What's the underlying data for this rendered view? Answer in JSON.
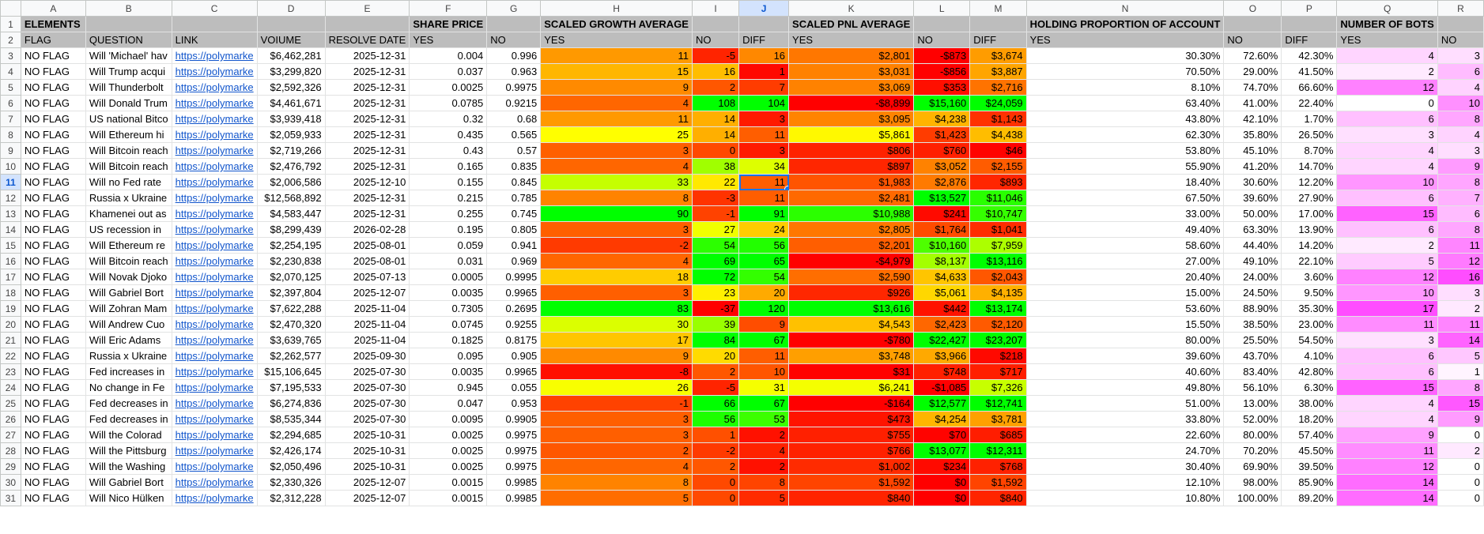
{
  "column_letters": [
    "A",
    "B",
    "C",
    "D",
    "E",
    "F",
    "G",
    "H",
    "I",
    "J",
    "K",
    "L",
    "M",
    "N",
    "O",
    "P",
    "Q",
    "R"
  ],
  "selected_column": "J",
  "selected_row": 11,
  "header_row1": [
    "ELEMENTS",
    "",
    "",
    "",
    "",
    "SHARE PRICE",
    "",
    "SCALED GROWTH AVERAGE",
    "",
    "",
    "SCALED PNL AVERAGE",
    "",
    "",
    "HOLDING PROPORTION OF ACCOUNT",
    "",
    "",
    "NUMBER OF BOTS",
    ""
  ],
  "header_row2": [
    "FLAG",
    "QUESTION",
    "LINK",
    "VOIUME",
    "RESOLVE DATE",
    "YES",
    "NO",
    "YES",
    "NO",
    "DIFF",
    "YES",
    "NO",
    "DIFF",
    "YES",
    "NO",
    "DIFF",
    "YES",
    "NO"
  ],
  "rows": [
    {
      "n": 3,
      "c": [
        "NO FLAG",
        "Will 'Michael' hav",
        "https://polymarke",
        "$6,462,281",
        "2025-12-31",
        "0.004",
        "0.996",
        "11",
        "-5",
        "16",
        "$2,801",
        "-$873",
        "$3,674",
        "30.30%",
        "72.60%",
        "42.30%",
        "4",
        "3"
      ]
    },
    {
      "n": 4,
      "c": [
        "NO FLAG",
        "Will Trump acqui",
        "https://polymarke",
        "$3,299,820",
        "2025-12-31",
        "0.037",
        "0.963",
        "15",
        "16",
        "1",
        "$3,031",
        "-$856",
        "$3,887",
        "70.50%",
        "29.00%",
        "41.50%",
        "2",
        "6"
      ]
    },
    {
      "n": 5,
      "c": [
        "NO FLAG",
        "Will Thunderbolt",
        "https://polymarke",
        "$2,592,326",
        "2025-12-31",
        "0.0025",
        "0.9975",
        "9",
        "2",
        "7",
        "$3,069",
        "$353",
        "$2,716",
        "8.10%",
        "74.70%",
        "66.60%",
        "12",
        "4"
      ]
    },
    {
      "n": 6,
      "c": [
        "NO FLAG",
        "Will Donald Trum",
        "https://polymarke",
        "$4,461,671",
        "2025-12-31",
        "0.0785",
        "0.9215",
        "4",
        "108",
        "104",
        "-$8,899",
        "$15,160",
        "$24,059",
        "63.40%",
        "41.00%",
        "22.40%",
        "0",
        "10"
      ]
    },
    {
      "n": 7,
      "c": [
        "NO FLAG",
        "US national Bitco",
        "https://polymarke",
        "$3,939,418",
        "2025-12-31",
        "0.32",
        "0.68",
        "11",
        "14",
        "3",
        "$3,095",
        "$4,238",
        "$1,143",
        "43.80%",
        "42.10%",
        "1.70%",
        "6",
        "8"
      ]
    },
    {
      "n": 8,
      "c": [
        "NO FLAG",
        "Will Ethereum hi",
        "https://polymarke",
        "$2,059,933",
        "2025-12-31",
        "0.435",
        "0.565",
        "25",
        "14",
        "11",
        "$5,861",
        "$1,423",
        "$4,438",
        "62.30%",
        "35.80%",
        "26.50%",
        "3",
        "4"
      ]
    },
    {
      "n": 9,
      "c": [
        "NO FLAG",
        "Will Bitcoin reach",
        "https://polymarke",
        "$2,719,266",
        "2025-12-31",
        "0.43",
        "0.57",
        "3",
        "0",
        "3",
        "$806",
        "$760",
        "$46",
        "53.80%",
        "45.10%",
        "8.70%",
        "4",
        "3"
      ]
    },
    {
      "n": 10,
      "c": [
        "NO FLAG",
        "Will Bitcoin reach",
        "https://polymarke",
        "$2,476,792",
        "2025-12-31",
        "0.165",
        "0.835",
        "4",
        "38",
        "34",
        "$897",
        "$3,052",
        "$2,155",
        "55.90%",
        "41.20%",
        "14.70%",
        "4",
        "9"
      ]
    },
    {
      "n": 11,
      "c": [
        "NO FLAG",
        "Will no Fed rate",
        "https://polymarke",
        "$2,006,586",
        "2025-12-10",
        "0.155",
        "0.845",
        "33",
        "22",
        "11",
        "$1,983",
        "$2,876",
        "$893",
        "18.40%",
        "30.60%",
        "12.20%",
        "10",
        "8"
      ]
    },
    {
      "n": 12,
      "c": [
        "NO FLAG",
        "Russia x Ukraine",
        "https://polymarke",
        "$12,568,892",
        "2025-12-31",
        "0.215",
        "0.785",
        "8",
        "-3",
        "11",
        "$2,481",
        "$13,527",
        "$11,046",
        "67.50%",
        "39.60%",
        "27.90%",
        "6",
        "7"
      ]
    },
    {
      "n": 13,
      "c": [
        "NO FLAG",
        "Khamenei out as",
        "https://polymarke",
        "$4,583,447",
        "2025-12-31",
        "0.255",
        "0.745",
        "90",
        "-1",
        "91",
        "$10,988",
        "$241",
        "$10,747",
        "33.00%",
        "50.00%",
        "17.00%",
        "15",
        "6"
      ]
    },
    {
      "n": 14,
      "c": [
        "NO FLAG",
        "US recession in",
        "https://polymarke",
        "$8,299,439",
        "2026-02-28",
        "0.195",
        "0.805",
        "3",
        "27",
        "24",
        "$2,805",
        "$1,764",
        "$1,041",
        "49.40%",
        "63.30%",
        "13.90%",
        "6",
        "8"
      ]
    },
    {
      "n": 15,
      "c": [
        "NO FLAG",
        "Will Ethereum re",
        "https://polymarke",
        "$2,254,195",
        "2025-08-01",
        "0.059",
        "0.941",
        "-2",
        "54",
        "56",
        "$2,201",
        "$10,160",
        "$7,959",
        "58.60%",
        "44.40%",
        "14.20%",
        "2",
        "11"
      ]
    },
    {
      "n": 16,
      "c": [
        "NO FLAG",
        "Will Bitcoin reach",
        "https://polymarke",
        "$2,230,838",
        "2025-08-01",
        "0.031",
        "0.969",
        "4",
        "69",
        "65",
        "-$4,979",
        "$8,137",
        "$13,116",
        "27.00%",
        "49.10%",
        "22.10%",
        "5",
        "12"
      ]
    },
    {
      "n": 17,
      "c": [
        "NO FLAG",
        "Will Novak Djoko",
        "https://polymarke",
        "$2,070,125",
        "2025-07-13",
        "0.0005",
        "0.9995",
        "18",
        "72",
        "54",
        "$2,590",
        "$4,633",
        "$2,043",
        "20.40%",
        "24.00%",
        "3.60%",
        "12",
        "16"
      ]
    },
    {
      "n": 18,
      "c": [
        "NO FLAG",
        "Will Gabriel Bort",
        "https://polymarke",
        "$2,397,804",
        "2025-12-07",
        "0.0035",
        "0.9965",
        "3",
        "23",
        "20",
        "$926",
        "$5,061",
        "$4,135",
        "15.00%",
        "24.50%",
        "9.50%",
        "10",
        "3"
      ]
    },
    {
      "n": 19,
      "c": [
        "NO FLAG",
        "Will Zohran Mam",
        "https://polymarke",
        "$7,622,288",
        "2025-11-04",
        "0.7305",
        "0.2695",
        "83",
        "-37",
        "120",
        "$13,616",
        "$442",
        "$13,174",
        "53.60%",
        "88.90%",
        "35.30%",
        "17",
        "2"
      ]
    },
    {
      "n": 20,
      "c": [
        "NO FLAG",
        "Will Andrew Cuo",
        "https://polymarke",
        "$2,470,320",
        "2025-11-04",
        "0.0745",
        "0.9255",
        "30",
        "39",
        "9",
        "$4,543",
        "$2,423",
        "$2,120",
        "15.50%",
        "38.50%",
        "23.00%",
        "11",
        "11"
      ]
    },
    {
      "n": 21,
      "c": [
        "NO FLAG",
        "Will Eric Adams",
        "https://polymarke",
        "$3,639,765",
        "2025-11-04",
        "0.1825",
        "0.8175",
        "17",
        "84",
        "67",
        "-$780",
        "$22,427",
        "$23,207",
        "80.00%",
        "25.50%",
        "54.50%",
        "3",
        "14"
      ]
    },
    {
      "n": 22,
      "c": [
        "NO FLAG",
        "Russia x Ukraine",
        "https://polymarke",
        "$2,262,577",
        "2025-09-30",
        "0.095",
        "0.905",
        "9",
        "20",
        "11",
        "$3,748",
        "$3,966",
        "$218",
        "39.60%",
        "43.70%",
        "4.10%",
        "6",
        "5"
      ]
    },
    {
      "n": 23,
      "c": [
        "NO FLAG",
        "Fed increases in",
        "https://polymarke",
        "$15,106,645",
        "2025-07-30",
        "0.0035",
        "0.9965",
        "-8",
        "2",
        "10",
        "$31",
        "$748",
        "$717",
        "40.60%",
        "83.40%",
        "42.80%",
        "6",
        "1"
      ]
    },
    {
      "n": 24,
      "c": [
        "NO FLAG",
        "No change in Fe",
        "https://polymarke",
        "$7,195,533",
        "2025-07-30",
        "0.945",
        "0.055",
        "26",
        "-5",
        "31",
        "$6,241",
        "-$1,085",
        "$7,326",
        "49.80%",
        "56.10%",
        "6.30%",
        "15",
        "8"
      ]
    },
    {
      "n": 25,
      "c": [
        "NO FLAG",
        "Fed decreases in",
        "https://polymarke",
        "$6,274,836",
        "2025-07-30",
        "0.047",
        "0.953",
        "-1",
        "66",
        "67",
        "-$164",
        "$12,577",
        "$12,741",
        "51.00%",
        "13.00%",
        "38.00%",
        "4",
        "15"
      ]
    },
    {
      "n": 26,
      "c": [
        "NO FLAG",
        "Fed decreases in",
        "https://polymarke",
        "$8,535,344",
        "2025-07-30",
        "0.0095",
        "0.9905",
        "3",
        "56",
        "53",
        "$473",
        "$4,254",
        "$3,781",
        "33.80%",
        "52.00%",
        "18.20%",
        "4",
        "9"
      ]
    },
    {
      "n": 27,
      "c": [
        "NO FLAG",
        "Will the Colorad",
        "https://polymarke",
        "$2,294,685",
        "2025-10-31",
        "0.0025",
        "0.9975",
        "3",
        "1",
        "2",
        "$755",
        "$70",
        "$685",
        "22.60%",
        "80.00%",
        "57.40%",
        "9",
        "0"
      ]
    },
    {
      "n": 28,
      "c": [
        "NO FLAG",
        "Will the Pittsburg",
        "https://polymarke",
        "$2,426,174",
        "2025-10-31",
        "0.0025",
        "0.9975",
        "2",
        "-2",
        "4",
        "$766",
        "$13,077",
        "$12,311",
        "24.70%",
        "70.20%",
        "45.50%",
        "11",
        "2"
      ]
    },
    {
      "n": 29,
      "c": [
        "NO FLAG",
        "Will the Washing",
        "https://polymarke",
        "$2,050,496",
        "2025-10-31",
        "0.0025",
        "0.9975",
        "4",
        "2",
        "2",
        "$1,002",
        "$234",
        "$768",
        "30.40%",
        "69.90%",
        "39.50%",
        "12",
        "0"
      ]
    },
    {
      "n": 30,
      "c": [
        "NO FLAG",
        "Will Gabriel Bort",
        "https://polymarke",
        "$2,330,326",
        "2025-12-07",
        "0.0015",
        "0.9985",
        "8",
        "0",
        "8",
        "$1,592",
        "$0",
        "$1,592",
        "12.10%",
        "98.00%",
        "85.90%",
        "14",
        "0"
      ]
    },
    {
      "n": 31,
      "c": [
        "NO FLAG",
        "Will Nico Hülken",
        "https://polymarke",
        "$2,312,228",
        "2025-12-07",
        "0.0015",
        "0.9985",
        "5",
        "0",
        "5",
        "$840",
        "$0",
        "$840",
        "10.80%",
        "100.00%",
        "89.20%",
        "14",
        "0"
      ]
    }
  ],
  "colors": {
    "header_gray": "#bdbdbd",
    "scale_low": "#ff0000",
    "scale_mid": "#ffff00",
    "scale_high": "#00ff00",
    "pink_low": "#ffffff",
    "pink_high": "#ff4dff",
    "selection": "#1a73e8"
  }
}
